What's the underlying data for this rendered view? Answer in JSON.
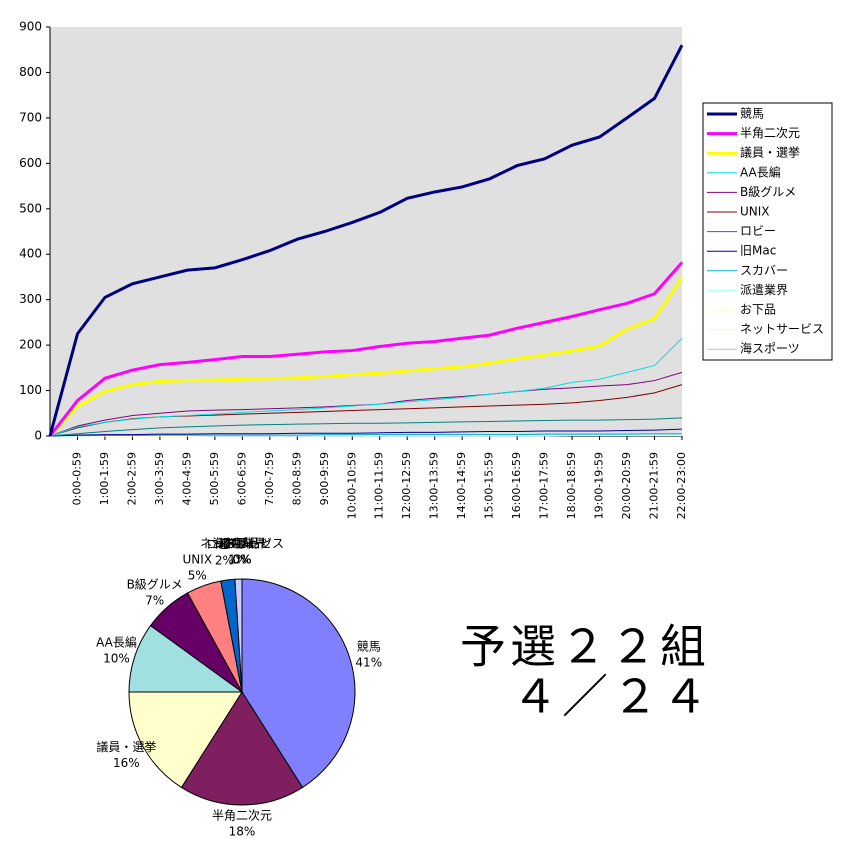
{
  "chart_data": [
    {
      "type": "line",
      "categories": [
        null,
        "0:00-0:59",
        "1:00-1:59",
        "2:00-2:59",
        "3:00-3:59",
        "4:00-4:59",
        "5:00-5:59",
        "6:00-6:59",
        "7:00-7:59",
        "8:00-8:59",
        "9:00-9:59",
        "10:00-10:59",
        "11:00-11:59",
        "12:00-12:59",
        "13:00-13:59",
        "14:00-14:59",
        "15:00-15:59",
        "16:00-16:59",
        "17:00-17:59",
        "18:00-18:59",
        "19:00-19:59",
        "20:00-20:59",
        "21:00-21:59",
        "22:00-23:00"
      ],
      "ylim": [
        0,
        900
      ],
      "yticks": [
        0,
        100,
        200,
        300,
        400,
        500,
        600,
        700,
        800,
        900
      ],
      "legend": "right",
      "series": [
        {
          "name": "競馬",
          "color": "#000080",
          "width": 3,
          "values": [
            0,
            225,
            305,
            335,
            350,
            365,
            370,
            388,
            408,
            433,
            450,
            470,
            492,
            523,
            537,
            548,
            566,
            595,
            610,
            640,
            658,
            700,
            743,
            860
          ]
        },
        {
          "name": "半角二次元",
          "color": "#ff00ff",
          "width": 3,
          "values": [
            0,
            78,
            127,
            145,
            157,
            162,
            168,
            175,
            175,
            180,
            185,
            188,
            197,
            204,
            208,
            215,
            222,
            237,
            250,
            263,
            278,
            292,
            313,
            382
          ]
        },
        {
          "name": "議員・選挙",
          "color": "#ffff00",
          "width": 3,
          "values": [
            0,
            65,
            98,
            113,
            120,
            122,
            123,
            125,
            126,
            128,
            131,
            135,
            138,
            143,
            148,
            152,
            160,
            170,
            178,
            187,
            198,
            235,
            258,
            348
          ]
        },
        {
          "name": "AA長編",
          "color": "#00e0e0",
          "width": 1,
          "values": [
            0,
            20,
            30,
            37,
            42,
            45,
            48,
            52,
            55,
            58,
            62,
            66,
            70,
            75,
            80,
            85,
            92,
            98,
            105,
            118,
            125,
            140,
            155,
            215
          ]
        },
        {
          "name": "B級グルメ",
          "color": "#800080",
          "width": 1,
          "values": [
            0,
            22,
            35,
            45,
            50,
            55,
            57,
            58,
            60,
            62,
            64,
            67,
            70,
            78,
            83,
            87,
            92,
            98,
            103,
            106,
            110,
            113,
            122,
            140
          ]
        },
        {
          "name": "UNIX",
          "color": "#800000",
          "width": 1,
          "values": [
            0,
            18,
            30,
            38,
            42,
            44,
            46,
            48,
            50,
            52,
            54,
            56,
            58,
            60,
            62,
            64,
            66,
            68,
            70,
            73,
            78,
            85,
            95,
            113
          ]
        },
        {
          "name": "ロビー",
          "color": "#008080",
          "width": 1,
          "values": [
            0,
            5,
            10,
            14,
            18,
            20,
            22,
            24,
            25,
            26,
            27,
            28,
            28,
            29,
            30,
            31,
            32,
            33,
            34,
            35,
            35,
            36,
            37,
            40
          ]
        },
        {
          "name": "旧Mac",
          "color": "#0000a0",
          "width": 1,
          "values": [
            0,
            2,
            3,
            3,
            4,
            4,
            5,
            5,
            5,
            6,
            6,
            6,
            7,
            8,
            8,
            9,
            10,
            10,
            11,
            11,
            11,
            12,
            13,
            15
          ]
        },
        {
          "name": "スカバー",
          "color": "#00b0d0",
          "width": 1,
          "values": [
            0,
            1,
            1,
            1,
            2,
            2,
            2,
            2,
            2,
            2,
            3,
            3,
            3,
            3,
            3,
            3,
            3,
            3,
            4,
            4,
            4,
            4,
            5,
            5
          ]
        },
        {
          "name": "派遣業界",
          "color": "#a0ffff",
          "width": 1,
          "values": [
            0,
            0,
            1,
            1,
            1,
            1,
            1,
            1,
            1,
            1,
            1,
            1,
            2,
            2,
            2,
            2,
            2,
            2,
            2,
            2,
            2,
            2,
            2,
            3
          ]
        },
        {
          "name": "お下品",
          "color": "#ffffc0",
          "width": 1,
          "values": [
            0,
            0,
            0,
            1,
            1,
            1,
            1,
            1,
            1,
            1,
            1,
            1,
            1,
            1,
            1,
            1,
            1,
            1,
            1,
            1,
            1,
            1,
            1,
            2
          ]
        },
        {
          "name": "ネットサービス",
          "color": "#ffff90",
          "width": 1,
          "values": [
            0,
            0,
            0,
            0,
            0,
            0,
            1,
            1,
            1,
            1,
            1,
            1,
            1,
            1,
            1,
            1,
            1,
            1,
            1,
            1,
            1,
            1,
            1,
            1
          ]
        },
        {
          "name": "海スポーツ",
          "color": "#a0c0ff",
          "width": 1,
          "values": [
            0,
            0,
            0,
            0,
            0,
            0,
            0,
            0,
            0,
            0,
            0,
            0,
            0,
            0,
            0,
            0,
            0,
            0,
            0,
            1,
            1,
            1,
            1,
            1
          ]
        }
      ]
    },
    {
      "type": "pie",
      "categories": [
        "競馬",
        "半角二次元",
        "議員・選挙",
        "AA長編",
        "B級グルメ",
        "UNIX",
        "ロビー",
        "旧Mac",
        "スカバー",
        "派遣業界",
        "お下品",
        "ネットサービス",
        "海スポーツ"
      ],
      "values": [
        41,
        18,
        16,
        10,
        7,
        5,
        2,
        1,
        0,
        0,
        0,
        0,
        0
      ],
      "value_labels": [
        "41%",
        "18%",
        "16%",
        "10%",
        "7%",
        "5%",
        "2%",
        "1%",
        "0%",
        "0%",
        "0%",
        "0%",
        "0%"
      ],
      "colors": [
        "#8080ff",
        "#7f1f5f",
        "#ffffcc",
        "#a0e0e0",
        "#660066",
        "#ff8080",
        "#0066cc",
        "#ccccff",
        "#000080",
        "#ff00ff",
        "#ffff00",
        "#00ffff",
        "#800080"
      ]
    }
  ],
  "heading": [
    "予選２２組",
    "４／２４"
  ]
}
